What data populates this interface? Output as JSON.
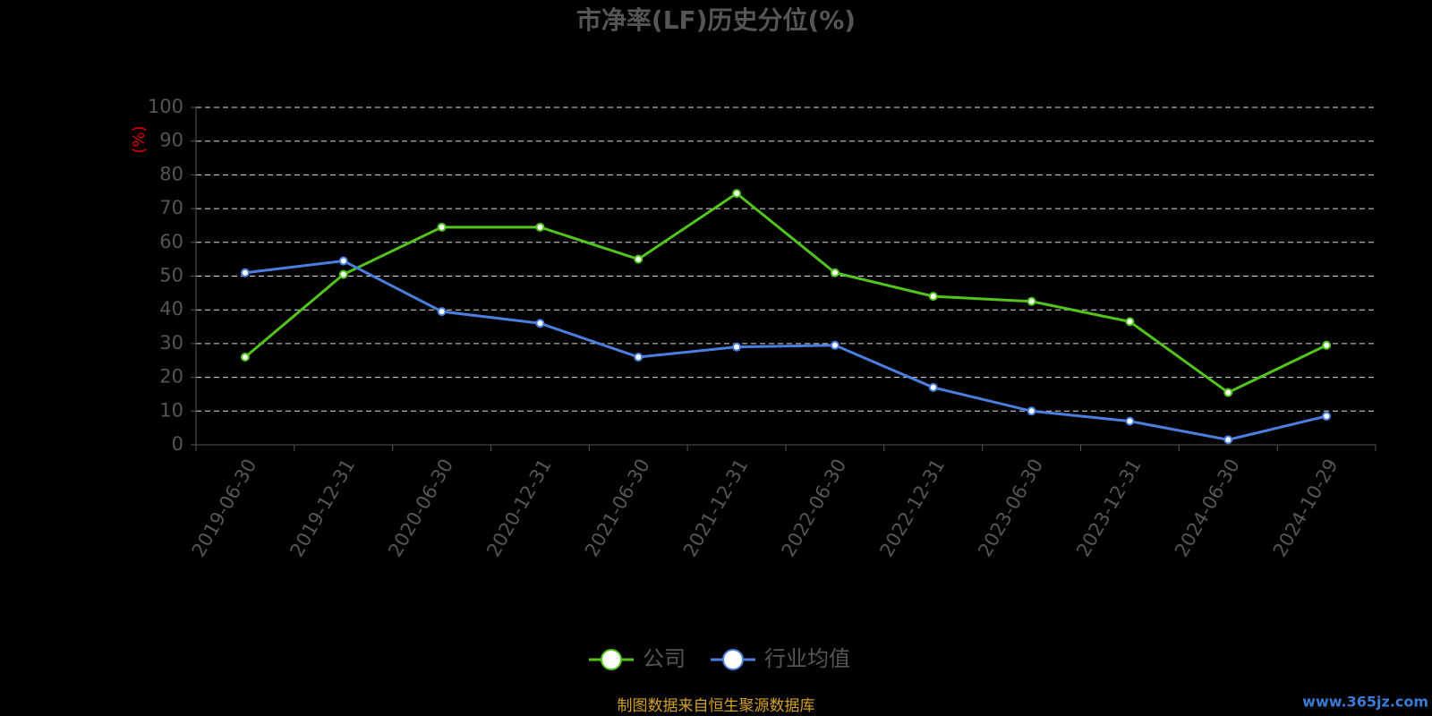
{
  "chart_data": {
    "type": "line",
    "title": "市净率(LF)历史分位(%)",
    "y_label": "(%)",
    "categories": [
      "2019-06-30",
      "2019-12-31",
      "2020-06-30",
      "2020-12-31",
      "2021-06-30",
      "2021-12-31",
      "2022-06-30",
      "2022-12-31",
      "2023-06-30",
      "2023-12-31",
      "2024-06-30",
      "2024-10-29"
    ],
    "series": [
      {
        "name": "公司",
        "color": "#52c41a",
        "values": [
          26,
          50.5,
          64.5,
          64.5,
          55,
          74.5,
          51,
          44,
          42.5,
          36.5,
          15.5,
          29.5
        ]
      },
      {
        "name": "行业均值",
        "color": "#4a7fe0",
        "values": [
          51,
          54.5,
          39.5,
          36,
          26,
          29,
          29.5,
          17,
          10,
          7,
          1.5,
          8.5
        ]
      }
    ],
    "ylim": [
      0,
      100
    ],
    "yticks": [
      0,
      10,
      20,
      30,
      40,
      50,
      60,
      70,
      80,
      90,
      100
    ],
    "grid": true,
    "source": "制图数据来自恒生聚源数据库",
    "watermark": "www.365jz.com"
  }
}
